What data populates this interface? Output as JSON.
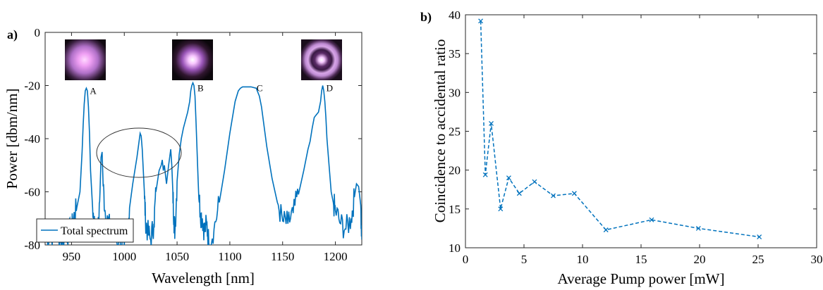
{
  "chart_data": [
    {
      "panel_label": "a)",
      "type": "line",
      "xlabel": "Wavelength [nm]",
      "ylabel": "Power [dbm/nm]",
      "xlim": [
        925,
        1225
      ],
      "ylim": [
        -80,
        0
      ],
      "xticks": [
        950,
        1000,
        1050,
        1100,
        1150,
        1200
      ],
      "yticks": [
        0,
        -20,
        -40,
        -60,
        -80
      ],
      "grid": false,
      "legend": {
        "placement": "bottom-left",
        "entries": [
          "Total spectrum"
        ]
      },
      "annotations": [
        {
          "label": "A",
          "x": 964,
          "y": -21
        },
        {
          "label": "B",
          "x": 1066,
          "y": -20
        },
        {
          "label": "C",
          "x": 1122,
          "y": -20
        },
        {
          "label": "D",
          "x": 1188,
          "y": -20
        }
      ],
      "series": [
        {
          "name": "Total spectrum",
          "color": "#0072BD",
          "x": [
            925,
            930,
            935,
            940,
            945,
            950,
            952,
            955,
            958,
            960,
            961,
            962,
            963,
            964,
            965,
            966,
            967,
            968,
            970,
            972,
            975,
            977,
            978,
            979,
            980,
            982,
            985,
            990,
            995,
            1000,
            1003,
            1005,
            1008,
            1010,
            1012,
            1013,
            1014,
            1015,
            1016,
            1017,
            1018,
            1019,
            1020,
            1022,
            1025,
            1028,
            1030,
            1033,
            1035,
            1036,
            1037,
            1038,
            1040,
            1042,
            1044,
            1045,
            1046,
            1047,
            1048,
            1050,
            1052,
            1054,
            1056,
            1058,
            1060,
            1062,
            1063,
            1064,
            1065,
            1066,
            1067,
            1068,
            1070,
            1072,
            1074,
            1076,
            1078,
            1080,
            1085,
            1090,
            1095,
            1100,
            1105,
            1108,
            1110,
            1112,
            1115,
            1120,
            1125,
            1128,
            1130,
            1132,
            1135,
            1140,
            1145,
            1150,
            1155,
            1160,
            1165,
            1170,
            1174,
            1176,
            1178,
            1180,
            1182,
            1184,
            1186,
            1187,
            1188,
            1189,
            1190,
            1191,
            1192,
            1194,
            1196,
            1198,
            1200,
            1205,
            1210,
            1215,
            1218,
            1220,
            1222,
            1224,
            1225
          ],
          "values": [
            -75,
            -78,
            -72,
            -79,
            -76,
            -74,
            -70,
            -66,
            -60,
            -45,
            -35,
            -27,
            -22,
            -21,
            -22,
            -28,
            -38,
            -52,
            -66,
            -73,
            -76,
            -60,
            -47,
            -45,
            -58,
            -68,
            -72,
            -77,
            -78,
            -80,
            -74,
            -66,
            -57,
            -52,
            -47,
            -44,
            -41,
            -38,
            -39,
            -44,
            -52,
            -60,
            -70,
            -75,
            -78,
            -72,
            -60,
            -52,
            -50,
            -48,
            -52,
            -50,
            -57,
            -50,
            -44,
            -50,
            -60,
            -70,
            -75,
            -56,
            -46,
            -40,
            -36,
            -33,
            -30,
            -26,
            -22,
            -20,
            -19,
            -20,
            -24,
            -34,
            -56,
            -68,
            -70,
            -75,
            -72,
            -79,
            -74,
            -64,
            -52,
            -38,
            -26,
            -22,
            -21,
            -20.5,
            -20.5,
            -20.5,
            -21,
            -24,
            -28,
            -34,
            -43,
            -55,
            -64,
            -71,
            -72,
            -68,
            -61,
            -52,
            -44,
            -41,
            -36,
            -32,
            -31,
            -30,
            -26,
            -22,
            -20,
            -22,
            -26,
            -32,
            -40,
            -50,
            -60,
            -64,
            -67,
            -72,
            -74,
            -70,
            -62,
            -57,
            -58,
            -65,
            -78
          ]
        }
      ]
    },
    {
      "panel_label": "b)",
      "type": "line",
      "xlabel": "Average Pump power [mW]",
      "ylabel": "Coincidence to accidental ratio",
      "xlim": [
        0,
        30
      ],
      "ylim": [
        10,
        40
      ],
      "xticks": [
        0,
        5,
        10,
        15,
        20,
        25,
        30
      ],
      "yticks": [
        10,
        15,
        20,
        25,
        30,
        35,
        40
      ],
      "grid": false,
      "series": [
        {
          "color": "#0072BD",
          "line_style": "dashed",
          "marker": "x",
          "x": [
            1.3,
            1.7,
            2.2,
            3.0,
            3.7,
            4.6,
            5.9,
            7.5,
            9.3,
            12.0,
            15.9,
            19.9,
            25.1
          ],
          "values": [
            39.2,
            19.4,
            26.0,
            15.0,
            19.0,
            17.0,
            18.5,
            16.7,
            17.0,
            12.3,
            13.6,
            12.5,
            11.4
          ]
        }
      ]
    }
  ],
  "insets": [
    {
      "name": "mode-image-a",
      "label": "A",
      "style": "gaussian"
    },
    {
      "name": "mode-image-b",
      "label": "B",
      "style": "gaussian-bright"
    },
    {
      "name": "mode-image-d",
      "label": "D",
      "style": "ring"
    }
  ]
}
